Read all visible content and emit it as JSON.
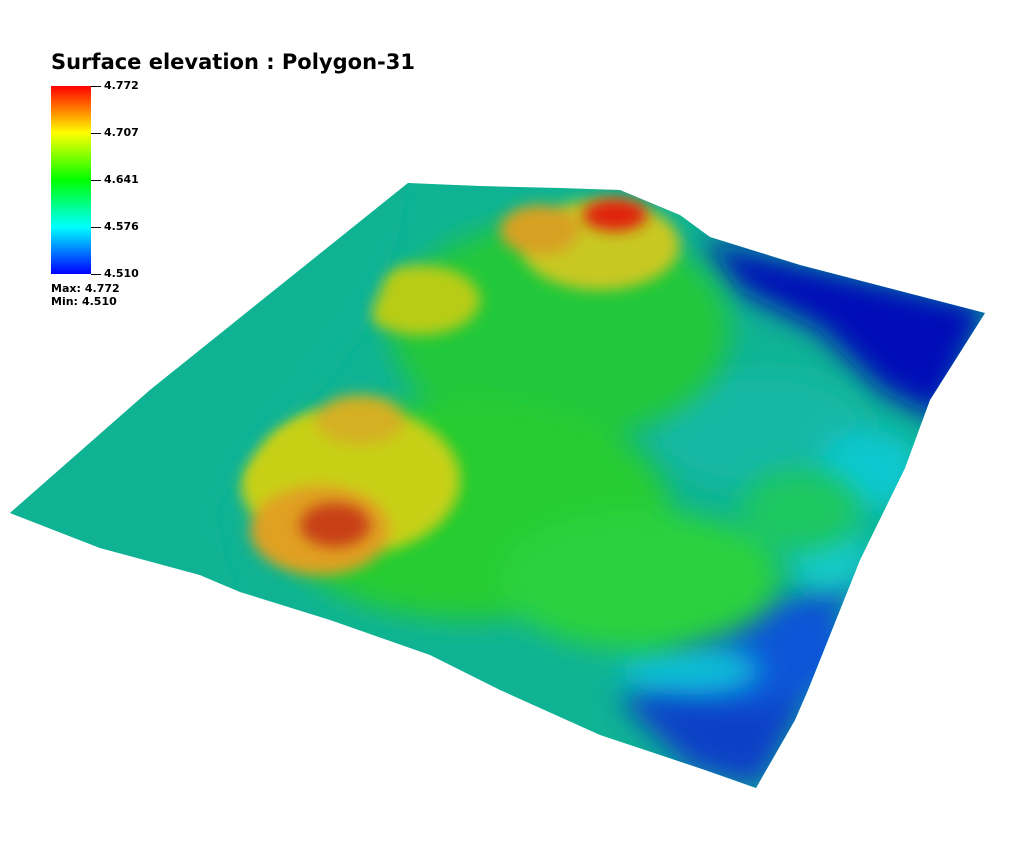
{
  "chart_data": {
    "type": "heatmap",
    "title": "Surface elevation : Polygon-31",
    "colormap": [
      "#0000ff",
      "#00ffff",
      "#00ff00",
      "#ffff00",
      "#ff0000"
    ],
    "colorbar": {
      "ticks": [
        "4.772",
        "4.707",
        "4.641",
        "4.576",
        "4.510"
      ],
      "max_label": "Max:",
      "max_value": "4.772",
      "min_label": "Min:",
      "min_value": "4.510"
    },
    "range": [
      4.51,
      4.772
    ]
  }
}
